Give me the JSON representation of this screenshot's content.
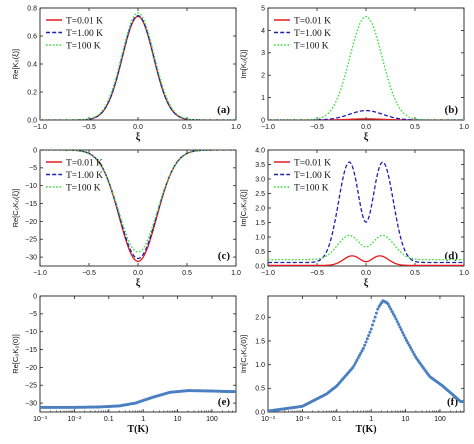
{
  "chart_data": [
    {
      "id": "a",
      "type": "line",
      "panel_label": "(a)",
      "ylabel": "Re[K₀(ξ)]",
      "xlabel": "ξ",
      "xlim": [
        -1.0,
        1.0
      ],
      "ylim": [
        0,
        0.8
      ],
      "xticks": [
        -1.0,
        -0.5,
        0.0,
        0.5,
        1.0
      ],
      "xtick_labels": [
        "−1.0",
        "−0.5",
        "0.0",
        "0.5",
        "1.0"
      ],
      "yticks": [
        0,
        0.2,
        0.4,
        0.6,
        0.8
      ],
      "ytick_labels": [
        "0.0",
        "0.2",
        "0.4",
        "0.6",
        "0.8"
      ],
      "legend": "top-left",
      "series": [
        {
          "name": "T=0.01 K",
          "color": "#e41a1c",
          "dash": "solid",
          "curve": {
            "kind": "gauss",
            "base": 0,
            "amp": 0.74,
            "width": 0.16
          }
        },
        {
          "name": "T=1.00 K",
          "color": "#1f1fb4",
          "dash": "dash",
          "curve": {
            "kind": "gauss",
            "base": 0,
            "amp": 0.745,
            "width": 0.16
          }
        },
        {
          "name": "T=100 K",
          "color": "#2ee02e",
          "dash": "dot",
          "curve": {
            "kind": "gauss",
            "base": 0,
            "amp": 0.765,
            "width": 0.165
          }
        }
      ]
    },
    {
      "id": "b",
      "type": "line",
      "panel_label": "(b)",
      "ylabel": "Im[K₀(ξ)]",
      "xlabel": "ξ",
      "xlim": [
        -1.0,
        1.0
      ],
      "ylim": [
        0,
        5
      ],
      "xticks": [
        -1.0,
        -0.5,
        0.0,
        0.5,
        1.0
      ],
      "xtick_labels": [
        "−1.0",
        "−0.5",
        "0.0",
        "0.5",
        "1.0"
      ],
      "yticks": [
        0,
        1,
        2,
        3,
        4,
        5
      ],
      "ytick_labels": [
        "0",
        "1",
        "2",
        "3",
        "4",
        "5"
      ],
      "legend": "top-left",
      "series": [
        {
          "name": "T=0.01 K",
          "color": "#e41a1c",
          "dash": "solid",
          "curve": {
            "kind": "gauss",
            "base": 0,
            "amp": 0.05,
            "width": 0.17
          }
        },
        {
          "name": "T=1.00 K",
          "color": "#1f1fb4",
          "dash": "dash",
          "curve": {
            "kind": "gauss",
            "base": 0,
            "amp": 0.42,
            "width": 0.17
          }
        },
        {
          "name": "T=100 K",
          "color": "#2ee02e",
          "dash": "dot",
          "curve": {
            "kind": "gauss",
            "base": 0,
            "amp": 4.62,
            "width": 0.165
          }
        }
      ]
    },
    {
      "id": "c",
      "type": "line",
      "panel_label": "(c)",
      "ylabel": "Re[C₀K₀(ξ)]",
      "xlabel": "ξ",
      "xlim": [
        -1.0,
        1.0
      ],
      "ylim": [
        -32.5,
        0
      ],
      "xticks": [
        -1.0,
        -0.5,
        0.0,
        0.5,
        1.0
      ],
      "xtick_labels": [
        "−1.0",
        "−0.5",
        "0.0",
        "0.5",
        "1.0"
      ],
      "yticks": [
        0,
        -5,
        -10,
        -15,
        -20,
        -25,
        -30
      ],
      "ytick_labels": [
        "0",
        "−5",
        "−10",
        "−15",
        "−20",
        "−25",
        "−30"
      ],
      "legend": "top-left",
      "series": [
        {
          "name": "T=0.01 K",
          "color": "#e41a1c",
          "dash": "solid",
          "curve": {
            "kind": "gauss",
            "base": 0,
            "amp": -31.2,
            "width": 0.19
          }
        },
        {
          "name": "T=1.00 K",
          "color": "#1f1fb4",
          "dash": "dash",
          "curve": {
            "kind": "gauss",
            "base": 0,
            "amp": -30.4,
            "width": 0.19
          }
        },
        {
          "name": "T=100 K",
          "color": "#2ee02e",
          "dash": "dot",
          "curve": {
            "kind": "gauss",
            "base": 0,
            "amp": -28.6,
            "width": 0.195
          }
        }
      ]
    },
    {
      "id": "d",
      "type": "line",
      "panel_label": "(d)",
      "ylabel": "Im[C₀K₀(ξ)]",
      "xlabel": "ξ",
      "xlim": [
        -1.0,
        1.0
      ],
      "ylim": [
        0,
        4.0
      ],
      "xticks": [
        -1.0,
        -0.5,
        0.0,
        0.5,
        1.0
      ],
      "xtick_labels": [
        "−1.0",
        "−0.5",
        "0.0",
        "0.5",
        "1.0"
      ],
      "yticks": [
        0,
        0.5,
        1.0,
        1.5,
        2.0,
        2.5,
        3.0,
        3.5,
        4.0
      ],
      "ytick_labels": [
        "0.0",
        "0.5",
        "1.0",
        "1.5",
        "2.0",
        "2.5",
        "3.0",
        "3.5",
        "4.0"
      ],
      "legend": "top-left",
      "series": [
        {
          "name": "T=0.01 K",
          "color": "#e41a1c",
          "dash": "solid",
          "curve": {
            "kind": "double",
            "base": 0.02,
            "peak": 0.35,
            "center": 0.14,
            "width": 0.09
          }
        },
        {
          "name": "T=1.00 K",
          "color": "#1f1fb4",
          "dash": "dash",
          "curve": {
            "kind": "double",
            "base": 0.12,
            "peak": 3.58,
            "center": 0.17,
            "width": 0.11
          }
        },
        {
          "name": "T=100 K",
          "color": "#2ee02e",
          "dash": "dot",
          "curve": {
            "kind": "double",
            "base": 0.22,
            "peak": 1.05,
            "center": 0.17,
            "width": 0.12
          }
        }
      ]
    },
    {
      "id": "e",
      "type": "scatter",
      "panel_label": "(e)",
      "ylabel": "Re[C₀K₀(0)]",
      "xlabel": "T(K)",
      "xscale": "log",
      "xlim": [
        0.001,
        500
      ],
      "ylim": [
        -32.5,
        0
      ],
      "xticks": [
        0.001,
        0.01,
        0.1,
        1,
        10,
        100
      ],
      "xtick_labels": [
        "10⁻³",
        "10⁻²",
        "0.1",
        "1",
        "10",
        "100"
      ],
      "yticks": [
        0,
        -5,
        -10,
        -15,
        -20,
        -25,
        -30
      ],
      "ytick_labels": [
        "0",
        "−5",
        "−10",
        "−15",
        "−20",
        "−25",
        "−30"
      ],
      "series": [
        {
          "color": "#4a7fc1",
          "samples": [
            [
              0.001,
              -31.2
            ],
            [
              0.01,
              -31.2
            ],
            [
              0.05,
              -31.1
            ],
            [
              0.2,
              -30.8
            ],
            [
              0.6,
              -30.0
            ],
            [
              2,
              -28.3
            ],
            [
              6,
              -27.0
            ],
            [
              20,
              -26.5
            ],
            [
              80,
              -26.6
            ],
            [
              400,
              -26.8
            ]
          ]
        }
      ]
    },
    {
      "id": "f",
      "type": "scatter",
      "panel_label": "(f)",
      "ylabel": "Im[C₀K₀(0)]",
      "xlabel": "T(K)",
      "xscale": "log",
      "xlim": [
        0.001,
        500
      ],
      "ylim": [
        0,
        2.45
      ],
      "xticks": [
        0.001,
        0.01,
        0.1,
        1,
        10,
        100
      ],
      "xtick_labels": [
        "10⁻³",
        "10⁻²",
        "0.1",
        "1",
        "10",
        "100"
      ],
      "yticks": [
        0,
        0.5,
        1.0,
        1.5,
        2.0
      ],
      "ytick_labels": [
        "0.0",
        "0.5",
        "1.0",
        "1.5",
        "2.0"
      ],
      "series": [
        {
          "color": "#4a7fc1",
          "samples": [
            [
              0.001,
              0.02
            ],
            [
              0.01,
              0.12
            ],
            [
              0.05,
              0.38
            ],
            [
              0.1,
              0.55
            ],
            [
              0.3,
              0.95
            ],
            [
              0.6,
              1.35
            ],
            [
              1,
              1.75
            ],
            [
              1.6,
              2.2
            ],
            [
              2.2,
              2.35
            ],
            [
              3,
              2.3
            ],
            [
              5,
              2.0
            ],
            [
              10,
              1.55
            ],
            [
              20,
              1.15
            ],
            [
              50,
              0.75
            ],
            [
              120,
              0.55
            ],
            [
              400,
              0.22
            ]
          ]
        }
      ]
    }
  ]
}
